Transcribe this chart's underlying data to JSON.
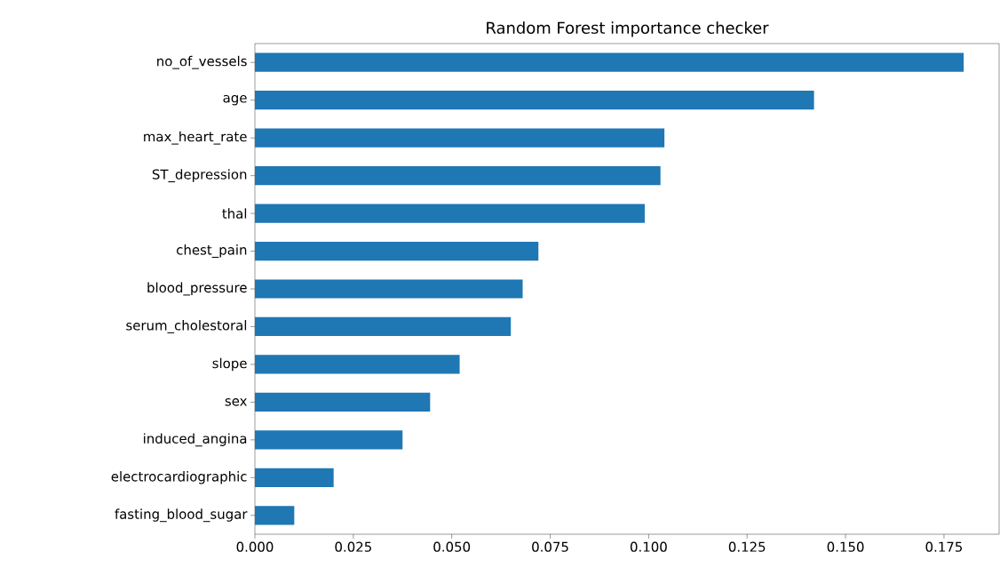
{
  "chart_data": {
    "type": "bar",
    "orientation": "horizontal",
    "title": "Random Forest importance checker",
    "categories": [
      "no_of_vessels",
      "age",
      "max_heart_rate",
      "ST_depression",
      "thal",
      "chest_pain",
      "blood_pressure",
      "serum_cholestoral",
      "slope",
      "sex",
      "induced_angina",
      "electrocardiographic",
      "fasting_blood_sugar"
    ],
    "values": [
      0.18,
      0.142,
      0.104,
      0.103,
      0.099,
      0.072,
      0.068,
      0.065,
      0.052,
      0.0445,
      0.0375,
      0.02,
      0.01
    ],
    "color": "#1f77b4",
    "xlim": [
      0,
      0.189
    ],
    "xticks": [
      {
        "value": 0,
        "label": "0.000"
      },
      {
        "value": 0.025,
        "label": "0.025"
      },
      {
        "value": 0.05,
        "label": "0.050"
      },
      {
        "value": 0.075,
        "label": "0.075"
      },
      {
        "value": 0.1,
        "label": "0.100"
      },
      {
        "value": 0.125,
        "label": "0.125"
      },
      {
        "value": 0.15,
        "label": "0.150"
      },
      {
        "value": 0.175,
        "label": "0.175"
      }
    ],
    "grid": false
  }
}
